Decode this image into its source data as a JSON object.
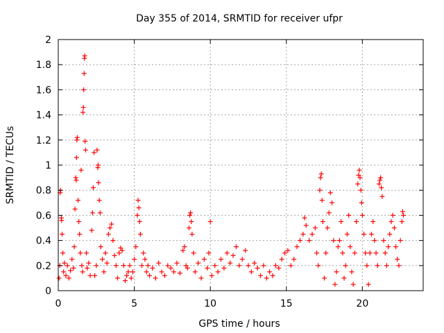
{
  "chart_data": {
    "type": "scatter",
    "title": "Day 355 of 2014, SRMTID for receiver ufpr",
    "xlabel": "GPS time / hours",
    "ylabel": "SRMTID / TECUs",
    "xlim": [
      0,
      24
    ],
    "ylim": [
      0,
      2
    ],
    "x_ticks": [
      0,
      5,
      10,
      15,
      20
    ],
    "x_tick_labels": [
      "0",
      "5",
      "10",
      "15",
      "20"
    ],
    "y_ticks": [
      0,
      0.2,
      0.4,
      0.6,
      0.8,
      1,
      1.2,
      1.4,
      1.6,
      1.8,
      2
    ],
    "y_tick_labels": [
      "0",
      "0.2",
      "0.4",
      "0.6",
      "0.8",
      "1",
      "1.2",
      "1.4",
      "1.6",
      "1.8",
      "2"
    ],
    "grid": true,
    "marker": "+",
    "color": "#ff0000",
    "series": [
      {
        "name": "SRMTID",
        "points": [
          [
            0.05,
            0.1
          ],
          [
            0.1,
            0.2
          ],
          [
            0.12,
            0.78
          ],
          [
            0.15,
            0.8
          ],
          [
            0.2,
            0.58
          ],
          [
            0.22,
            0.56
          ],
          [
            0.25,
            0.45
          ],
          [
            0.3,
            0.3
          ],
          [
            0.35,
            0.15
          ],
          [
            0.4,
            0.22
          ],
          [
            0.5,
            0.12
          ],
          [
            0.6,
            0.2
          ],
          [
            0.7,
            0.1
          ],
          [
            0.8,
            0.16
          ],
          [
            0.9,
            0.25
          ],
          [
            1.0,
            0.18
          ],
          [
            1.05,
            0.35
          ],
          [
            1.1,
            0.65
          ],
          [
            1.15,
            0.9
          ],
          [
            1.18,
            0.88
          ],
          [
            1.2,
            1.06
          ],
          [
            1.22,
            1.2
          ],
          [
            1.25,
            1.22
          ],
          [
            1.3,
            0.72
          ],
          [
            1.35,
            0.55
          ],
          [
            1.4,
            0.45
          ],
          [
            1.45,
            0.3
          ],
          [
            1.5,
            0.96
          ],
          [
            1.55,
            0.2
          ],
          [
            1.6,
            0.15
          ],
          [
            1.62,
            1.42
          ],
          [
            1.65,
            1.46
          ],
          [
            1.67,
            1.6
          ],
          [
            1.7,
            1.73
          ],
          [
            1.72,
            1.85
          ],
          [
            1.74,
            1.87
          ],
          [
            1.76,
            1.19
          ],
          [
            1.8,
            1.12
          ],
          [
            1.85,
            0.3
          ],
          [
            1.9,
            0.18
          ],
          [
            2.0,
            0.22
          ],
          [
            2.1,
            0.12
          ],
          [
            2.2,
            0.48
          ],
          [
            2.25,
            0.62
          ],
          [
            2.3,
            0.82
          ],
          [
            2.35,
            1.1
          ],
          [
            2.4,
            0.12
          ],
          [
            2.5,
            0.2
          ],
          [
            2.55,
            1.12
          ],
          [
            2.6,
            0.98
          ],
          [
            2.62,
            1.0
          ],
          [
            2.65,
            0.86
          ],
          [
            2.7,
            0.72
          ],
          [
            2.75,
            0.62
          ],
          [
            2.8,
            0.35
          ],
          [
            2.9,
            0.25
          ],
          [
            3.0,
            0.15
          ],
          [
            3.1,
            0.3
          ],
          [
            3.2,
            0.22
          ],
          [
            3.3,
            0.45
          ],
          [
            3.4,
            0.5
          ],
          [
            3.5,
            0.53
          ],
          [
            3.6,
            0.4
          ],
          [
            3.7,
            0.28
          ],
          [
            3.8,
            0.2
          ],
          [
            3.9,
            0.1
          ],
          [
            4.0,
            0.3
          ],
          [
            4.1,
            0.34
          ],
          [
            4.2,
            0.32
          ],
          [
            4.3,
            0.2
          ],
          [
            4.4,
            0.08
          ],
          [
            4.5,
            0.12
          ],
          [
            4.6,
            0.15
          ],
          [
            4.7,
            0.2
          ],
          [
            4.8,
            0.1
          ],
          [
            4.9,
            0.15
          ],
          [
            5.0,
            0.25
          ],
          [
            5.1,
            0.35
          ],
          [
            5.2,
            0.6
          ],
          [
            5.25,
            0.72
          ],
          [
            5.3,
            0.66
          ],
          [
            5.35,
            0.55
          ],
          [
            5.4,
            0.45
          ],
          [
            5.5,
            0.2
          ],
          [
            5.6,
            0.3
          ],
          [
            5.7,
            0.25
          ],
          [
            5.8,
            0.15
          ],
          [
            5.9,
            0.2
          ],
          [
            6.0,
            0.12
          ],
          [
            6.2,
            0.18
          ],
          [
            6.4,
            0.1
          ],
          [
            6.6,
            0.22
          ],
          [
            6.8,
            0.15
          ],
          [
            7.0,
            0.12
          ],
          [
            7.2,
            0.2
          ],
          [
            7.4,
            0.18
          ],
          [
            7.6,
            0.15
          ],
          [
            7.8,
            0.22
          ],
          [
            8.0,
            0.14
          ],
          [
            8.2,
            0.32
          ],
          [
            8.3,
            0.35
          ],
          [
            8.4,
            0.2
          ],
          [
            8.5,
            0.18
          ],
          [
            8.6,
            0.5
          ],
          [
            8.65,
            0.6
          ],
          [
            8.7,
            0.62
          ],
          [
            8.75,
            0.55
          ],
          [
            8.8,
            0.45
          ],
          [
            8.9,
            0.3
          ],
          [
            9.0,
            0.15
          ],
          [
            9.2,
            0.22
          ],
          [
            9.4,
            0.1
          ],
          [
            9.6,
            0.25
          ],
          [
            9.8,
            0.18
          ],
          [
            9.9,
            0.3
          ],
          [
            10.0,
            0.55
          ],
          [
            10.1,
            0.12
          ],
          [
            10.3,
            0.2
          ],
          [
            10.5,
            0.15
          ],
          [
            10.7,
            0.25
          ],
          [
            10.9,
            0.18
          ],
          [
            11.1,
            0.3
          ],
          [
            11.3,
            0.22
          ],
          [
            11.5,
            0.28
          ],
          [
            11.7,
            0.35
          ],
          [
            11.9,
            0.2
          ],
          [
            12.1,
            0.25
          ],
          [
            12.3,
            0.32
          ],
          [
            12.5,
            0.2
          ],
          [
            12.7,
            0.15
          ],
          [
            12.9,
            0.22
          ],
          [
            13.1,
            0.18
          ],
          [
            13.3,
            0.12
          ],
          [
            13.5,
            0.2
          ],
          [
            13.7,
            0.1
          ],
          [
            13.9,
            0.15
          ],
          [
            14.1,
            0.12
          ],
          [
            14.3,
            0.2
          ],
          [
            14.5,
            0.18
          ],
          [
            14.7,
            0.25
          ],
          [
            14.9,
            0.3
          ],
          [
            15.1,
            0.32
          ],
          [
            15.3,
            0.2
          ],
          [
            15.5,
            0.25
          ],
          [
            15.7,
            0.35
          ],
          [
            15.9,
            0.4
          ],
          [
            16.1,
            0.45
          ],
          [
            16.2,
            0.58
          ],
          [
            16.3,
            0.52
          ],
          [
            16.5,
            0.4
          ],
          [
            16.7,
            0.45
          ],
          [
            16.9,
            0.5
          ],
          [
            17.0,
            0.3
          ],
          [
            17.1,
            0.2
          ],
          [
            17.2,
            0.8
          ],
          [
            17.25,
            0.9
          ],
          [
            17.3,
            0.93
          ],
          [
            17.35,
            0.72
          ],
          [
            17.4,
            0.55
          ],
          [
            17.5,
            0.1
          ],
          [
            17.6,
            0.3
          ],
          [
            17.7,
            0.5
          ],
          [
            17.8,
            0.62
          ],
          [
            17.9,
            0.78
          ],
          [
            18.0,
            0.7
          ],
          [
            18.1,
            0.4
          ],
          [
            18.2,
            0.05
          ],
          [
            18.3,
            0.15
          ],
          [
            18.4,
            0.35
          ],
          [
            18.5,
            0.4
          ],
          [
            18.6,
            0.55
          ],
          [
            18.7,
            0.3
          ],
          [
            18.8,
            0.1
          ],
          [
            18.9,
            0.2
          ],
          [
            19.0,
            0.45
          ],
          [
            19.1,
            0.6
          ],
          [
            19.2,
            0.35
          ],
          [
            19.3,
            0.15
          ],
          [
            19.4,
            0.05
          ],
          [
            19.5,
            0.3
          ],
          [
            19.6,
            0.55
          ],
          [
            19.7,
            0.85
          ],
          [
            19.75,
            0.92
          ],
          [
            19.8,
            0.96
          ],
          [
            19.85,
            0.9
          ],
          [
            19.9,
            0.8
          ],
          [
            19.95,
            0.7
          ],
          [
            20.0,
            0.6
          ],
          [
            20.1,
            0.45
          ],
          [
            20.2,
            0.3
          ],
          [
            20.3,
            0.2
          ],
          [
            20.4,
            0.05
          ],
          [
            20.5,
            0.3
          ],
          [
            20.6,
            0.45
          ],
          [
            20.7,
            0.55
          ],
          [
            20.8,
            0.4
          ],
          [
            20.9,
            0.3
          ],
          [
            21.0,
            0.2
          ],
          [
            21.1,
            0.85
          ],
          [
            21.15,
            0.88
          ],
          [
            21.2,
            0.9
          ],
          [
            21.25,
            0.82
          ],
          [
            21.3,
            0.75
          ],
          [
            21.4,
            0.4
          ],
          [
            21.5,
            0.3
          ],
          [
            21.6,
            0.2
          ],
          [
            21.7,
            0.35
          ],
          [
            21.8,
            0.45
          ],
          [
            21.9,
            0.55
          ],
          [
            22.0,
            0.6
          ],
          [
            22.1,
            0.5
          ],
          [
            22.2,
            0.35
          ],
          [
            22.3,
            0.25
          ],
          [
            22.4,
            0.2
          ],
          [
            22.5,
            0.4
          ],
          [
            22.6,
            0.55
          ],
          [
            22.65,
            0.63
          ],
          [
            22.7,
            0.6
          ]
        ]
      }
    ]
  }
}
